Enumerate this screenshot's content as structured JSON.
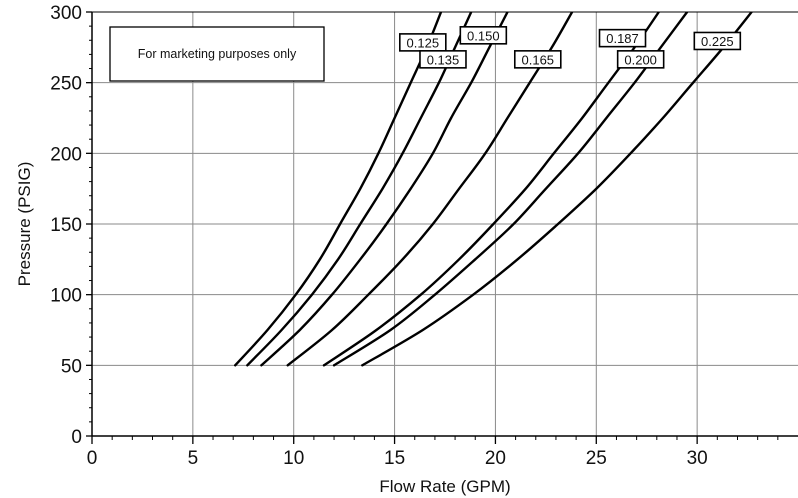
{
  "chart_data": {
    "type": "line",
    "title": "",
    "xlabel": "Flow Rate (GPM)",
    "ylabel": "Pressure (PSIG)",
    "xlim": [
      0,
      35
    ],
    "ylim": [
      0,
      300
    ],
    "x_ticks": [
      0,
      5,
      10,
      15,
      20,
      25,
      30
    ],
    "y_ticks": [
      0,
      50,
      100,
      150,
      200,
      250,
      300
    ],
    "grid": true,
    "annotation": "For marketing purposes only",
    "series": [
      {
        "label": "0.125",
        "points": [
          [
            7.1,
            50
          ],
          [
            8.7,
            75
          ],
          [
            10.1,
            100
          ],
          [
            11.3,
            125
          ],
          [
            12.3,
            150
          ],
          [
            13.3,
            175
          ],
          [
            14.2,
            200
          ],
          [
            15.0,
            225
          ],
          [
            15.8,
            250
          ],
          [
            16.6,
            275
          ],
          [
            17.3,
            300
          ]
        ]
      },
      {
        "label": "0.135",
        "points": [
          [
            7.7,
            50
          ],
          [
            9.4,
            75
          ],
          [
            10.9,
            100
          ],
          [
            12.2,
            125
          ],
          [
            13.3,
            150
          ],
          [
            14.4,
            175
          ],
          [
            15.4,
            200
          ],
          [
            16.3,
            225
          ],
          [
            17.2,
            250
          ],
          [
            18.0,
            275
          ],
          [
            18.8,
            300
          ]
        ]
      },
      {
        "label": "0.150",
        "points": [
          [
            8.4,
            50
          ],
          [
            10.3,
            75
          ],
          [
            11.9,
            100
          ],
          [
            13.3,
            125
          ],
          [
            14.6,
            150
          ],
          [
            15.8,
            175
          ],
          [
            16.9,
            200
          ],
          [
            17.8,
            225
          ],
          [
            18.8,
            250
          ],
          [
            19.7,
            275
          ],
          [
            20.6,
            300
          ]
        ]
      },
      {
        "label": "0.165",
        "points": [
          [
            9.7,
            50
          ],
          [
            11.9,
            75
          ],
          [
            13.7,
            100
          ],
          [
            15.4,
            125
          ],
          [
            16.9,
            150
          ],
          [
            18.2,
            175
          ],
          [
            19.5,
            200
          ],
          [
            20.6,
            225
          ],
          [
            21.7,
            250
          ],
          [
            22.8,
            275
          ],
          [
            23.8,
            300
          ]
        ]
      },
      {
        "label": "0.187",
        "points": [
          [
            11.5,
            50
          ],
          [
            14.1,
            75
          ],
          [
            16.3,
            100
          ],
          [
            18.2,
            125
          ],
          [
            19.9,
            150
          ],
          [
            21.5,
            175
          ],
          [
            22.9,
            200
          ],
          [
            24.3,
            225
          ],
          [
            25.6,
            250
          ],
          [
            26.9,
            275
          ],
          [
            28.1,
            300
          ]
        ]
      },
      {
        "label": "0.200",
        "points": [
          [
            12.0,
            50
          ],
          [
            14.8,
            75
          ],
          [
            17.0,
            100
          ],
          [
            19.0,
            125
          ],
          [
            20.9,
            150
          ],
          [
            22.5,
            175
          ],
          [
            24.1,
            200
          ],
          [
            25.5,
            225
          ],
          [
            26.9,
            250
          ],
          [
            28.2,
            275
          ],
          [
            29.5,
            300
          ]
        ]
      },
      {
        "label": "0.225",
        "points": [
          [
            13.4,
            50
          ],
          [
            16.4,
            75
          ],
          [
            18.9,
            100
          ],
          [
            21.1,
            125
          ],
          [
            23.1,
            150
          ],
          [
            25.0,
            175
          ],
          [
            26.7,
            200
          ],
          [
            28.3,
            225
          ],
          [
            29.8,
            250
          ],
          [
            31.3,
            275
          ],
          [
            32.7,
            300
          ]
        ]
      }
    ]
  }
}
